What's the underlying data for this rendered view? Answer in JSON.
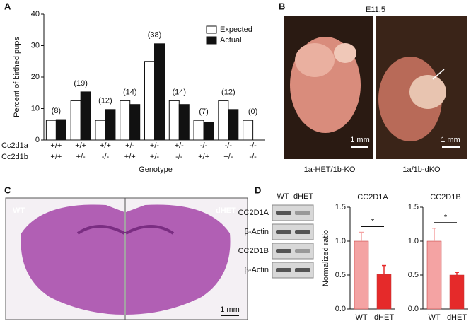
{
  "panel_labels": [
    "A",
    "B",
    "C",
    "D"
  ],
  "chart_data": [
    {
      "type": "grouped-bar",
      "ylabel": "Percent of birthed pups",
      "xlabel": "Genotype",
      "row_labels": [
        "Cc2d1a",
        "Cc2d1b"
      ],
      "categories": [
        [
          "+/+",
          "+/+"
        ],
        [
          "+/+",
          "+/-"
        ],
        [
          "+/+",
          "-/-"
        ],
        [
          "+/-",
          "+/+"
        ],
        [
          "+/-",
          "+/-"
        ],
        [
          "+/-",
          "-/-"
        ],
        [
          "-/-",
          "+/+"
        ],
        [
          "-/-",
          "+/-"
        ],
        [
          "-/-",
          "-/-"
        ]
      ],
      "annotations": [
        "(8)",
        "(19)",
        "(12)",
        "(14)",
        "(38)",
        "(14)",
        "(7)",
        "(12)",
        "(0)"
      ],
      "series": [
        {
          "name": "Expected",
          "color": "#ffffff",
          "values": [
            6.25,
            12.5,
            6.25,
            12.5,
            25,
            12.5,
            6.25,
            12.5,
            6.25
          ]
        },
        {
          "name": "Actual",
          "color": "#111111",
          "values": [
            6.5,
            15.3,
            9.7,
            11.3,
            30.6,
            11.3,
            5.6,
            9.7,
            0
          ]
        }
      ],
      "ylim": [
        0,
        40
      ],
      "yticks": [
        0,
        10,
        20,
        30,
        40
      ],
      "legend": "upper-right"
    },
    {
      "type": "bar",
      "title": "CC2D1A",
      "ylabel": "Normalized ratio",
      "categories": [
        "WT",
        "dHET"
      ],
      "values": [
        1.0,
        0.51
      ],
      "errors": [
        0.13,
        0.13
      ],
      "colors": [
        "#f4a3a3",
        "#e52a2a"
      ],
      "significance": "*",
      "ylim": [
        0,
        1.5
      ],
      "yticks": [
        {
          "value": 0,
          "label": "0.0"
        },
        {
          "value": 0.5,
          "label": "0.5"
        },
        {
          "value": 1,
          "label": "1.0"
        },
        {
          "value": 1.5,
          "label": "1.5"
        }
      ]
    },
    {
      "type": "bar",
      "title": "CC2D1B",
      "categories": [
        "WT",
        "dHET"
      ],
      "values": [
        1.0,
        0.5
      ],
      "errors": [
        0.19,
        0.04
      ],
      "colors": [
        "#f4a3a3",
        "#e52a2a"
      ],
      "significance": "*",
      "ylim": [
        0,
        1.5
      ],
      "yticks": [
        {
          "value": 0,
          "label": "0.0"
        },
        {
          "value": 0.5,
          "label": "0.5"
        },
        {
          "value": 1,
          "label": "1.0"
        },
        {
          "value": 1.5,
          "label": "1.5"
        }
      ]
    }
  ],
  "embryos": {
    "stage": "E11.5",
    "left_label": "1a-HET/1b-KO",
    "right_label": "1a/1b-dKO",
    "scale_left": "1 mm",
    "scale_right": "1 mm"
  },
  "brain": {
    "left_label": "WT",
    "right_label": "dHET",
    "scale": "1 mm"
  },
  "blot": {
    "columns": [
      "WT",
      "dHET"
    ],
    "rows": [
      "CC2D1A",
      "β-Actin",
      "CC2D1B",
      "β-Actin"
    ]
  }
}
